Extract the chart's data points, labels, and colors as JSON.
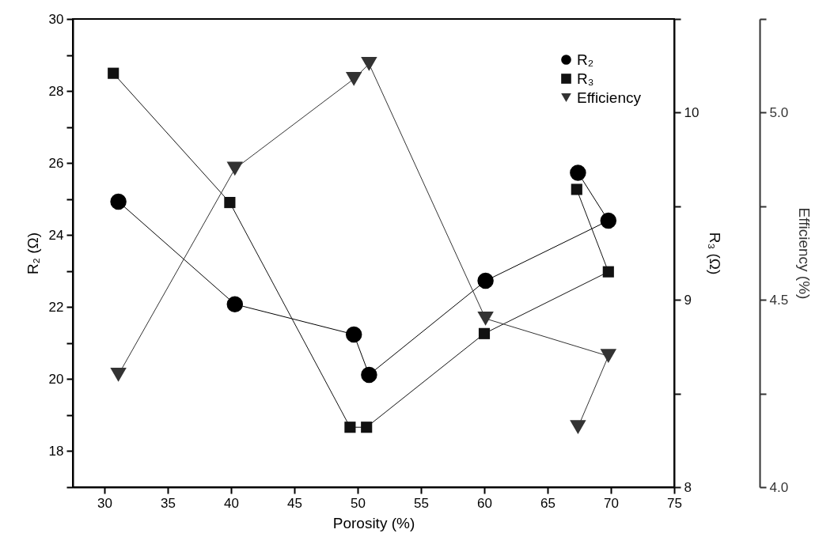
{
  "chart_data": {
    "type": "line",
    "xlabel": "Porosity (%)",
    "ylabel": "R₂ (Ω)",
    "y2label": "R₃ (Ω)",
    "y3label": "Efficiency (%)",
    "xlim": [
      27.5,
      75
    ],
    "xticks": [
      30,
      35,
      40,
      45,
      50,
      55,
      60,
      65,
      70,
      75
    ],
    "ylim": [
      17,
      30
    ],
    "yticks": [
      18,
      20,
      22,
      24,
      26,
      28,
      30,
      {
        "value": 17,
        "label": null
      },
      {
        "value": 19,
        "label": null
      },
      {
        "value": 21,
        "label": null
      },
      {
        "value": 23,
        "label": null
      },
      {
        "value": 25,
        "label": null
      },
      {
        "value": 27,
        "label": null
      },
      {
        "value": 29,
        "label": null
      }
    ],
    "y2lim": [
      8,
      10.5
    ],
    "y2ticks": [
      8,
      9,
      10,
      {
        "value": 8.5,
        "label": null
      },
      {
        "value": 9.5,
        "label": null
      },
      {
        "value": 10.5,
        "label": null
      }
    ],
    "y3lim": [
      4,
      5.25
    ],
    "y3ticks": [
      {
        "value": 4,
        "label": "4.0"
      },
      {
        "value": 4.5,
        "label": "4.5"
      },
      {
        "value": 5,
        "label": "5.0"
      },
      {
        "value": 4.25,
        "label": null
      },
      {
        "value": 4.75,
        "label": null
      },
      {
        "value": 5.25,
        "label": null
      }
    ],
    "legend": "top right",
    "series": [
      {
        "name": "R₂",
        "color": "#000000",
        "marker": "circle",
        "x": [
          31.1,
          40.3,
          49.7,
          50.9,
          60.1,
          69.8,
          67.4
        ],
        "values": [
          24.93,
          22.08,
          21.24,
          20.12,
          22.73,
          24.4,
          25.73
        ]
      },
      {
        "name": "R₃",
        "color": "#111111",
        "marker": "square",
        "axis": "y2",
        "x": [
          30.7,
          39.9,
          49.4,
          50.7,
          60.0,
          69.8,
          67.3
        ],
        "values": [
          10.21,
          9.52,
          8.32,
          8.32,
          8.82,
          9.15,
          9.59
        ]
      },
      {
        "name": "Efficiency",
        "color": "#333333",
        "marker": "triangle",
        "axis": "y3",
        "x": [
          31.1,
          40.3,
          49.7,
          50.9,
          60.1,
          69.8,
          67.4
        ],
        "values": [
          4.3,
          4.85,
          5.09,
          5.13,
          4.45,
          4.35,
          4.16
        ]
      }
    ]
  }
}
